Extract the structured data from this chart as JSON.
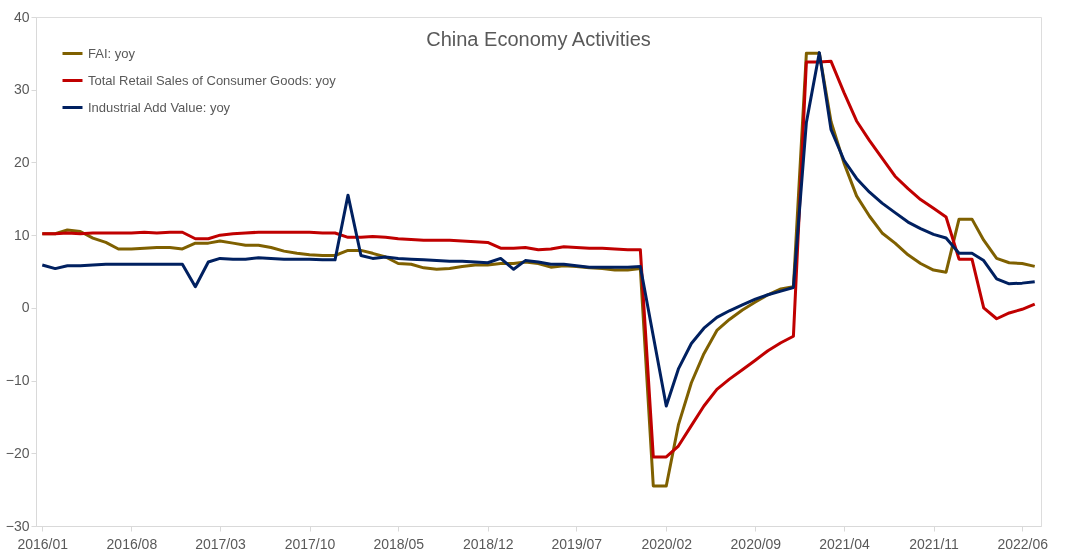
{
  "chart_data": {
    "type": "line",
    "title": "China Economy Activities",
    "x": [
      "2016-01",
      "2016-02",
      "2016-03",
      "2016-04",
      "2016-05",
      "2016-06",
      "2016-07",
      "2016-08",
      "2016-09",
      "2016-10",
      "2016-11",
      "2016-12",
      "2017-01",
      "2017-02",
      "2017-03",
      "2017-04",
      "2017-05",
      "2017-06",
      "2017-07",
      "2017-08",
      "2017-09",
      "2017-10",
      "2017-11",
      "2017-12",
      "2018-01",
      "2018-02",
      "2018-03",
      "2018-04",
      "2018-05",
      "2018-06",
      "2018-07",
      "2018-08",
      "2018-09",
      "2018-10",
      "2018-11",
      "2018-12",
      "2019-01",
      "2019-02",
      "2019-03",
      "2019-04",
      "2019-05",
      "2019-06",
      "2019-07",
      "2019-08",
      "2019-09",
      "2019-10",
      "2019-11",
      "2019-12",
      "2020-01",
      "2020-02",
      "2020-03",
      "2020-04",
      "2020-05",
      "2020-06",
      "2020-07",
      "2020-08",
      "2020-09",
      "2020-10",
      "2020-11",
      "2020-12",
      "2021-01",
      "2021-02",
      "2021-03",
      "2021-04",
      "2021-05",
      "2021-06",
      "2021-07",
      "2021-08",
      "2021-09",
      "2021-10",
      "2021-11",
      "2021-12",
      "2022-01",
      "2022-02",
      "2022-03",
      "2022-04",
      "2022-05",
      "2022-06",
      "2022-07"
    ],
    "series": [
      {
        "name": "FAI: yoy",
        "color": "#7f6000",
        "values": [
          10.2,
          10.2,
          10.7,
          10.5,
          9.6,
          9.0,
          8.1,
          8.1,
          8.2,
          8.3,
          8.3,
          8.1,
          8.9,
          8.9,
          9.2,
          8.9,
          8.6,
          8.6,
          8.3,
          7.8,
          7.5,
          7.3,
          7.2,
          7.2,
          7.9,
          7.9,
          7.5,
          7.0,
          6.1,
          6.0,
          5.5,
          5.3,
          5.4,
          5.7,
          5.9,
          5.9,
          6.1,
          6.1,
          6.3,
          6.1,
          5.6,
          5.8,
          5.7,
          5.5,
          5.4,
          5.2,
          5.2,
          5.4,
          -24.5,
          -24.5,
          -16.1,
          -10.3,
          -6.3,
          -3.1,
          -1.6,
          -0.3,
          0.8,
          1.8,
          2.6,
          2.9,
          35.0,
          35.0,
          25.6,
          19.9,
          15.4,
          12.6,
          10.3,
          8.9,
          7.3,
          6.1,
          5.2,
          4.9,
          12.2,
          12.2,
          9.3,
          6.8,
          6.2,
          6.1,
          5.7
        ]
      },
      {
        "name": "Total Retail Sales of Consumer Goods: yoy",
        "color": "#c00000",
        "values": [
          10.2,
          10.2,
          10.3,
          10.2,
          10.3,
          10.3,
          10.3,
          10.3,
          10.4,
          10.3,
          10.4,
          10.4,
          9.5,
          9.5,
          10.0,
          10.2,
          10.3,
          10.4,
          10.4,
          10.4,
          10.4,
          10.4,
          10.3,
          10.3,
          9.7,
          9.7,
          9.8,
          9.7,
          9.5,
          9.4,
          9.3,
          9.3,
          9.3,
          9.2,
          9.1,
          9.0,
          8.2,
          8.2,
          8.3,
          8.0,
          8.1,
          8.4,
          8.3,
          8.2,
          8.2,
          8.1,
          8.0,
          8.0,
          -20.5,
          -20.5,
          -19.0,
          -16.2,
          -13.5,
          -11.2,
          -9.8,
          -8.5,
          -7.2,
          -5.9,
          -4.8,
          -3.9,
          33.8,
          33.8,
          33.9,
          29.6,
          25.7,
          23.0,
          20.6,
          18.1,
          16.4,
          14.9,
          13.7,
          12.5,
          6.7,
          6.7,
          0.0,
          -1.5,
          -0.7,
          -0.2,
          0.5
        ]
      },
      {
        "name": "Industrial Add Value: yoy",
        "color": "#002060",
        "values": [
          5.9,
          5.4,
          5.8,
          5.8,
          5.9,
          6.0,
          6.0,
          6.0,
          6.0,
          6.0,
          6.0,
          6.0,
          2.9,
          6.3,
          6.8,
          6.7,
          6.7,
          6.9,
          6.8,
          6.7,
          6.7,
          6.7,
          6.6,
          6.6,
          15.5,
          7.2,
          6.8,
          7.0,
          6.8,
          6.7,
          6.6,
          6.5,
          6.4,
          6.4,
          6.3,
          6.2,
          6.8,
          5.3,
          6.5,
          6.3,
          6.0,
          6.0,
          5.8,
          5.6,
          5.6,
          5.6,
          5.6,
          5.7,
          -3.9,
          -13.5,
          -8.4,
          -4.9,
          -2.8,
          -1.3,
          -0.4,
          0.4,
          1.2,
          1.8,
          2.3,
          2.8,
          25.5,
          35.1,
          24.5,
          20.3,
          17.8,
          15.9,
          14.4,
          13.1,
          11.8,
          10.9,
          10.1,
          9.6,
          7.5,
          7.5,
          6.5,
          4.0,
          3.3,
          3.4,
          3.6
        ]
      }
    ],
    "xlim": [
      "2015-12-17",
      "2022-07-16"
    ],
    "xticks": [
      {
        "value": "2016-01",
        "label": "2016/01"
      },
      {
        "value": "2016-08",
        "label": "2016/08"
      },
      {
        "value": "2017-03",
        "label": "2017/03"
      },
      {
        "value": "2017-10",
        "label": "2017/10"
      },
      {
        "value": "2018-05",
        "label": "2018/05"
      },
      {
        "value": "2018-12",
        "label": "2018/12"
      },
      {
        "value": "2019-07",
        "label": "2019/07"
      },
      {
        "value": "2020-02",
        "label": "2020/02"
      },
      {
        "value": "2020-09",
        "label": "2020/09"
      },
      {
        "value": "2021-04",
        "label": "2021/04"
      },
      {
        "value": "2021-11",
        "label": "2021/11"
      },
      {
        "value": "2022-06",
        "label": "2022/06"
      }
    ],
    "ylim": [
      -30,
      40
    ],
    "yticks": [
      -30,
      -20,
      -10,
      0,
      10,
      20,
      30,
      40
    ],
    "grid": false,
    "legend": "top left",
    "marker": "none",
    "line_style": "solid"
  }
}
